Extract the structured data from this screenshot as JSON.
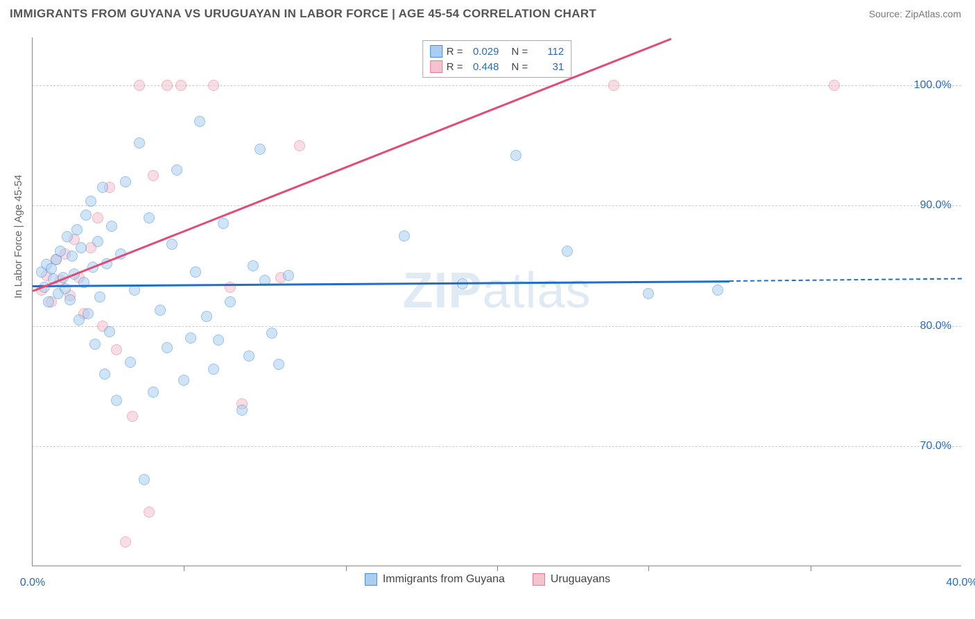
{
  "title": "IMMIGRANTS FROM GUYANA VS URUGUAYAN IN LABOR FORCE | AGE 45-54 CORRELATION CHART",
  "source": "Source: ZipAtlas.com",
  "ylabel": "In Labor Force | Age 45-54",
  "watermark": {
    "bold": "ZIP",
    "rest": "atlas"
  },
  "chart": {
    "type": "scatter",
    "background": "#ffffff",
    "grid_color": "#cccccc",
    "axis_color": "#888888",
    "xlim": [
      0,
      40
    ],
    "ylim": [
      60,
      104
    ],
    "xticks": [
      0,
      40
    ],
    "xtick_minors": [
      6.5,
      13.5,
      20,
      26.5,
      33.5
    ],
    "yticks": [
      70,
      80,
      90,
      100
    ],
    "ytick_labels": [
      "70.0%",
      "80.0%",
      "90.0%",
      "100.0%"
    ],
    "xtick_labels": [
      "0.0%",
      "40.0%"
    ]
  },
  "series": [
    {
      "name": "Immigrants from Guyana",
      "R": "0.029",
      "N": "112",
      "color_fill": "#a9cef2",
      "color_stroke": "#4a8fd6",
      "trend_color": "#1d6fc9",
      "trend": {
        "x1": 0,
        "y1": 83.4,
        "x2": 30,
        "y2": 83.8,
        "dash_x2": 40,
        "dash_y2": 84.0
      },
      "points": [
        [
          0.4,
          84.5
        ],
        [
          0.5,
          83.2
        ],
        [
          0.6,
          85.1
        ],
        [
          0.7,
          82.0
        ],
        [
          0.8,
          84.8
        ],
        [
          0.9,
          83.9
        ],
        [
          1.0,
          85.5
        ],
        [
          1.1,
          82.7
        ],
        [
          1.2,
          86.2
        ],
        [
          1.3,
          84.0
        ],
        [
          1.4,
          83.1
        ],
        [
          1.5,
          87.4
        ],
        [
          1.6,
          82.2
        ],
        [
          1.7,
          85.8
        ],
        [
          1.8,
          84.3
        ],
        [
          1.9,
          88.0
        ],
        [
          2.0,
          80.5
        ],
        [
          2.1,
          86.5
        ],
        [
          2.2,
          83.6
        ],
        [
          2.3,
          89.2
        ],
        [
          2.4,
          81.0
        ],
        [
          2.5,
          90.4
        ],
        [
          2.6,
          84.9
        ],
        [
          2.7,
          78.5
        ],
        [
          2.8,
          87.0
        ],
        [
          2.9,
          82.4
        ],
        [
          3.0,
          91.5
        ],
        [
          3.1,
          76.0
        ],
        [
          3.2,
          85.2
        ],
        [
          3.3,
          79.5
        ],
        [
          3.4,
          88.3
        ],
        [
          3.6,
          73.8
        ],
        [
          3.8,
          86.0
        ],
        [
          4.0,
          92.0
        ],
        [
          4.2,
          77.0
        ],
        [
          4.4,
          83.0
        ],
        [
          4.6,
          95.2
        ],
        [
          4.8,
          67.2
        ],
        [
          5.0,
          89.0
        ],
        [
          5.2,
          74.5
        ],
        [
          5.5,
          81.3
        ],
        [
          5.8,
          78.2
        ],
        [
          6.0,
          86.8
        ],
        [
          6.2,
          93.0
        ],
        [
          6.5,
          75.5
        ],
        [
          6.8,
          79.0
        ],
        [
          7.0,
          84.5
        ],
        [
          7.2,
          97.0
        ],
        [
          7.5,
          80.8
        ],
        [
          7.8,
          76.4
        ],
        [
          8.0,
          78.8
        ],
        [
          8.2,
          88.5
        ],
        [
          8.5,
          82.0
        ],
        [
          9.0,
          73.0
        ],
        [
          9.3,
          77.5
        ],
        [
          9.5,
          85.0
        ],
        [
          9.8,
          94.7
        ],
        [
          10.0,
          83.8
        ],
        [
          10.3,
          79.4
        ],
        [
          10.6,
          76.8
        ],
        [
          11.0,
          84.2
        ],
        [
          16.0,
          87.5
        ],
        [
          18.5,
          83.5
        ],
        [
          20.8,
          94.2
        ],
        [
          23.0,
          86.2
        ],
        [
          26.5,
          82.7
        ],
        [
          29.5,
          83.0
        ]
      ]
    },
    {
      "name": "Uruguayans",
      "R": "0.448",
      "N": "31",
      "color_fill": "#f5c3cf",
      "color_stroke": "#e07a94",
      "trend_color": "#e34b77",
      "trend": {
        "x1": 0,
        "y1": 83.0,
        "x2": 27.5,
        "y2": 104.0
      },
      "points": [
        [
          0.4,
          83.0
        ],
        [
          0.6,
          84.2
        ],
        [
          0.8,
          82.0
        ],
        [
          1.0,
          85.5
        ],
        [
          1.2,
          83.8
        ],
        [
          1.4,
          86.0
        ],
        [
          1.6,
          82.5
        ],
        [
          1.8,
          87.2
        ],
        [
          2.0,
          84.0
        ],
        [
          2.2,
          81.0
        ],
        [
          2.5,
          86.5
        ],
        [
          2.8,
          89.0
        ],
        [
          3.0,
          80.0
        ],
        [
          3.3,
          91.5
        ],
        [
          3.6,
          78.0
        ],
        [
          4.0,
          62.0
        ],
        [
          4.3,
          72.5
        ],
        [
          4.6,
          100.0
        ],
        [
          5.0,
          64.5
        ],
        [
          5.2,
          92.5
        ],
        [
          5.8,
          100.0
        ],
        [
          6.4,
          100.0
        ],
        [
          7.8,
          100.0
        ],
        [
          8.5,
          83.2
        ],
        [
          9.0,
          73.5
        ],
        [
          10.7,
          84.0
        ],
        [
          11.5,
          95.0
        ],
        [
          25.0,
          100.0
        ],
        [
          34.5,
          100.0
        ]
      ]
    }
  ],
  "legend_labels": {
    "R": "R =",
    "N": "N ="
  },
  "bottom_legend": [
    "Immigrants from Guyana",
    "Uruguayans"
  ]
}
